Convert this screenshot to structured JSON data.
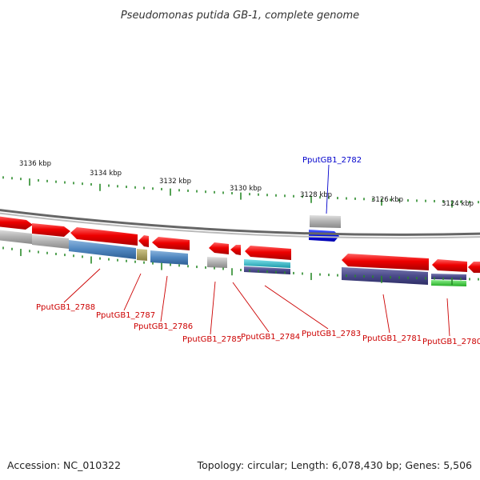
{
  "title": "Pseudomonas putida GB-1, complete genome",
  "footer": {
    "accession": "Accession: NC_010322",
    "summary": "Topology: circular; Length: 6,078,430 bp; Genes: 5,506"
  },
  "ticks": [
    "3136 kbp",
    "3134 kbp",
    "3132 kbp",
    "3130 kbp",
    "3128 kbp",
    "3126 kbp",
    "3124 kbp"
  ],
  "genes": {
    "forward": [
      "PputGB1_2782"
    ],
    "reverse": [
      "PputGB1_2788",
      "PputGB1_2787",
      "PputGB1_2786",
      "PputGB1_2785",
      "PputGB1_2784",
      "PputGB1_2783",
      "PputGB1_2781",
      "PputGB1_2780"
    ]
  },
  "colors": {
    "forward_label": "#0000cc",
    "reverse_label": "#cc0000",
    "gene_red": "#ee0000",
    "gene_blue": "#0011ee",
    "backbone": "#888888",
    "tick": "#2a8a2a",
    "gray_feature": "#b0b0b0",
    "steel_blue": "#4f86bf",
    "olive": "#a89e55",
    "navy": "#4a4a8a",
    "cyan": "#22b8c8",
    "green": "#33cc33"
  }
}
